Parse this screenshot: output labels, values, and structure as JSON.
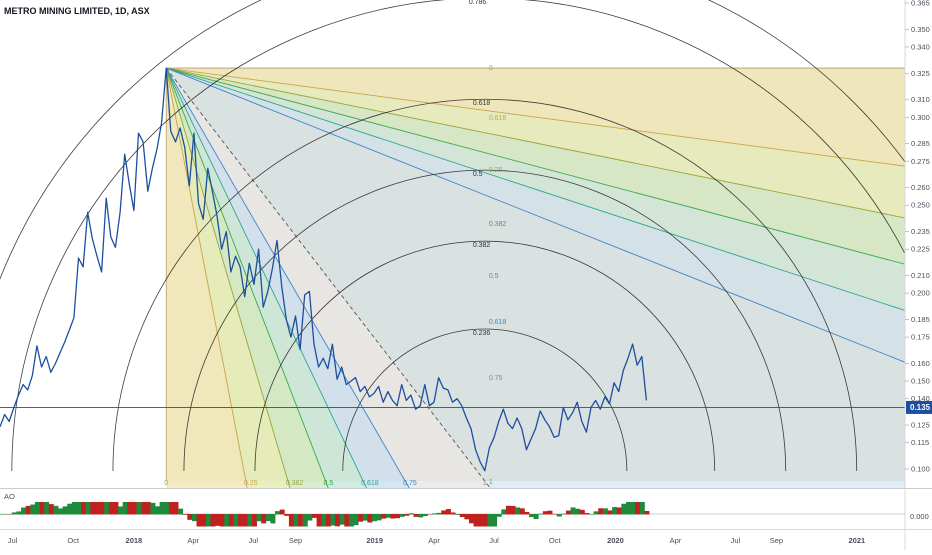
{
  "chart_data": {
    "type": "line",
    "title": "METRO MINING LIMITED, 1D, ASX",
    "indicator_label": "AO",
    "indicator_axis_label": "0.000",
    "last_price_label": "0.135",
    "last_price": 0.135,
    "ylim": [
      0.088,
      0.368
    ],
    "y_ticks": [
      0.1,
      0.115,
      0.125,
      0.14,
      0.15,
      0.16,
      0.175,
      0.185,
      0.2,
      0.21,
      0.225,
      0.235,
      0.25,
      0.26,
      0.275,
      0.285,
      0.3,
      0.31,
      0.325,
      0.34,
      0.35,
      0.365
    ],
    "y_tick_labels": [
      "0.100",
      "0.115",
      "0.125",
      "0.140",
      "0.150",
      "0.160",
      "0.175",
      "0.185",
      "0.200",
      "0.210",
      "0.225",
      "0.235",
      "0.250",
      "0.260",
      "0.275",
      "0.285",
      "0.300",
      "0.310",
      "0.325",
      "0.340",
      "0.350",
      "0.365"
    ],
    "x_range": [
      "2017-06-12",
      "2021-03-15"
    ],
    "x_ticks": [
      {
        "label": "Jul",
        "date": "2017-07-01"
      },
      {
        "label": "Oct",
        "date": "2017-10-01"
      },
      {
        "label": "2018",
        "date": "2018-01-01"
      },
      {
        "label": "Apr",
        "date": "2018-04-01"
      },
      {
        "label": "Jul",
        "date": "2018-07-01"
      },
      {
        "label": "Sep",
        "date": "2018-09-03"
      },
      {
        "label": "2019",
        "date": "2019-01-01"
      },
      {
        "label": "Apr",
        "date": "2019-04-01"
      },
      {
        "label": "Jul",
        "date": "2019-07-01"
      },
      {
        "label": "Oct",
        "date": "2019-10-01"
      },
      {
        "label": "2020",
        "date": "2020-01-01"
      },
      {
        "label": "Apr",
        "date": "2020-04-01"
      },
      {
        "label": "Jul",
        "date": "2020-07-01"
      },
      {
        "label": "Sep",
        "date": "2020-09-01"
      },
      {
        "label": "2021",
        "date": "2021-01-01"
      }
    ],
    "series": [
      {
        "x": [
          "2017-06-12",
          "2017-06-19",
          "2017-06-26",
          "2017-07-03",
          "2017-07-10",
          "2017-07-17",
          "2017-07-24",
          "2017-07-31",
          "2017-08-07",
          "2017-08-14",
          "2017-08-21",
          "2017-08-28",
          "2017-09-04",
          "2017-09-11",
          "2017-09-18",
          "2017-09-25",
          "2017-10-02",
          "2017-10-09",
          "2017-10-16",
          "2017-10-23",
          "2017-10-30",
          "2017-11-06",
          "2017-11-13",
          "2017-11-20",
          "2017-11-27",
          "2017-12-04",
          "2017-12-11",
          "2017-12-18",
          "2017-12-25",
          "2018-01-01",
          "2018-01-08",
          "2018-01-15",
          "2018-01-22",
          "2018-01-29",
          "2018-02-05",
          "2018-02-12",
          "2018-02-19",
          "2018-02-26",
          "2018-03-05",
          "2018-03-12",
          "2018-03-19",
          "2018-03-26",
          "2018-04-02",
          "2018-04-09",
          "2018-04-16",
          "2018-04-23",
          "2018-04-30",
          "2018-05-07",
          "2018-05-14",
          "2018-05-21",
          "2018-05-28",
          "2018-06-04",
          "2018-06-11",
          "2018-06-18",
          "2018-06-25",
          "2018-07-02",
          "2018-07-09",
          "2018-07-16",
          "2018-07-23",
          "2018-07-30",
          "2018-08-06",
          "2018-08-13",
          "2018-08-20",
          "2018-08-27",
          "2018-09-03",
          "2018-09-10",
          "2018-09-17",
          "2018-09-24",
          "2018-10-01",
          "2018-10-08",
          "2018-10-15",
          "2018-10-22",
          "2018-10-29",
          "2018-11-05",
          "2018-11-12",
          "2018-11-19",
          "2018-11-26",
          "2018-12-03",
          "2018-12-10",
          "2018-12-17",
          "2018-12-24",
          "2018-12-31",
          "2019-01-07",
          "2019-01-14",
          "2019-01-21",
          "2019-01-28",
          "2019-02-04",
          "2019-02-11",
          "2019-02-18",
          "2019-02-25",
          "2019-03-04",
          "2019-03-11",
          "2019-03-18",
          "2019-03-25",
          "2019-04-01",
          "2019-04-08",
          "2019-04-15",
          "2019-04-22",
          "2019-04-29",
          "2019-05-06",
          "2019-05-13",
          "2019-05-20",
          "2019-05-27",
          "2019-06-03",
          "2019-06-10",
          "2019-06-17",
          "2019-06-24",
          "2019-07-01",
          "2019-07-08",
          "2019-07-15",
          "2019-07-22",
          "2019-07-29",
          "2019-08-05",
          "2019-08-12",
          "2019-08-19",
          "2019-08-26",
          "2019-09-02",
          "2019-09-09",
          "2019-09-16",
          "2019-09-23",
          "2019-09-30",
          "2019-10-07",
          "2019-10-14",
          "2019-10-21",
          "2019-10-28",
          "2019-11-04",
          "2019-11-11",
          "2019-11-18",
          "2019-11-25",
          "2019-12-02",
          "2019-12-09",
          "2019-12-16",
          "2019-12-23",
          "2019-12-30",
          "2020-01-06",
          "2020-01-13",
          "2020-01-20",
          "2020-01-27",
          "2020-02-03",
          "2020-02-10",
          "2020-02-17"
        ],
        "values": [
          0.124,
          0.131,
          0.127,
          0.135,
          0.142,
          0.148,
          0.145,
          0.153,
          0.17,
          0.158,
          0.164,
          0.155,
          0.16,
          0.166,
          0.172,
          0.179,
          0.186,
          0.22,
          0.215,
          0.246,
          0.231,
          0.221,
          0.212,
          0.254,
          0.232,
          0.226,
          0.246,
          0.279,
          0.262,
          0.247,
          0.291,
          0.286,
          0.258,
          0.271,
          0.282,
          0.297,
          0.328,
          0.292,
          0.286,
          0.294,
          0.283,
          0.261,
          0.291,
          0.251,
          0.242,
          0.271,
          0.258,
          0.244,
          0.225,
          0.235,
          0.212,
          0.221,
          0.215,
          0.198,
          0.217,
          0.205,
          0.225,
          0.192,
          0.201,
          0.214,
          0.23,
          0.204,
          0.185,
          0.175,
          0.187,
          0.168,
          0.199,
          0.201,
          0.171,
          0.158,
          0.163,
          0.157,
          0.171,
          0.151,
          0.158,
          0.148,
          0.15,
          0.152,
          0.144,
          0.147,
          0.141,
          0.143,
          0.147,
          0.138,
          0.144,
          0.139,
          0.136,
          0.148,
          0.139,
          0.142,
          0.134,
          0.136,
          0.148,
          0.136,
          0.138,
          0.152,
          0.146,
          0.145,
          0.138,
          0.14,
          0.136,
          0.129,
          0.123,
          0.111,
          0.104,
          0.099,
          0.112,
          0.118,
          0.127,
          0.134,
          0.126,
          0.123,
          0.129,
          0.123,
          0.111,
          0.117,
          0.123,
          0.133,
          0.128,
          0.124,
          0.118,
          0.119,
          0.135,
          0.128,
          0.132,
          0.138,
          0.127,
          0.121,
          0.135,
          0.139,
          0.134,
          0.141,
          0.137,
          0.149,
          0.144,
          0.156,
          0.163,
          0.171,
          0.159,
          0.164,
          0.139
        ]
      }
    ]
  },
  "gann_fan": {
    "ratio_labels": [
      "0",
      "0.25",
      "0.382",
      "0.5",
      "0.618",
      "0.75",
      "1"
    ],
    "ratio_colors": [
      "#b29e6b",
      "#c8a44a",
      "#9aa53a",
      "#3ba94a",
      "#2fa58f",
      "#3f85c8",
      "#8a8a8a"
    ],
    "arc_labels": [
      "0.786",
      "0.618",
      "0.5",
      "0.382",
      "0.236"
    ],
    "fan_line_labels": [
      "0",
      "0.618",
      "0.25",
      "0.382",
      "0.5",
      "0.618",
      "0.75",
      "1"
    ]
  },
  "colors": {
    "price_line": "#1d4fa0",
    "background_fill": "#ecdfc7",
    "ao_up": "#1f8a3c",
    "ao_down": "#c0201e",
    "last_price_badge": "#1d4fa0"
  }
}
